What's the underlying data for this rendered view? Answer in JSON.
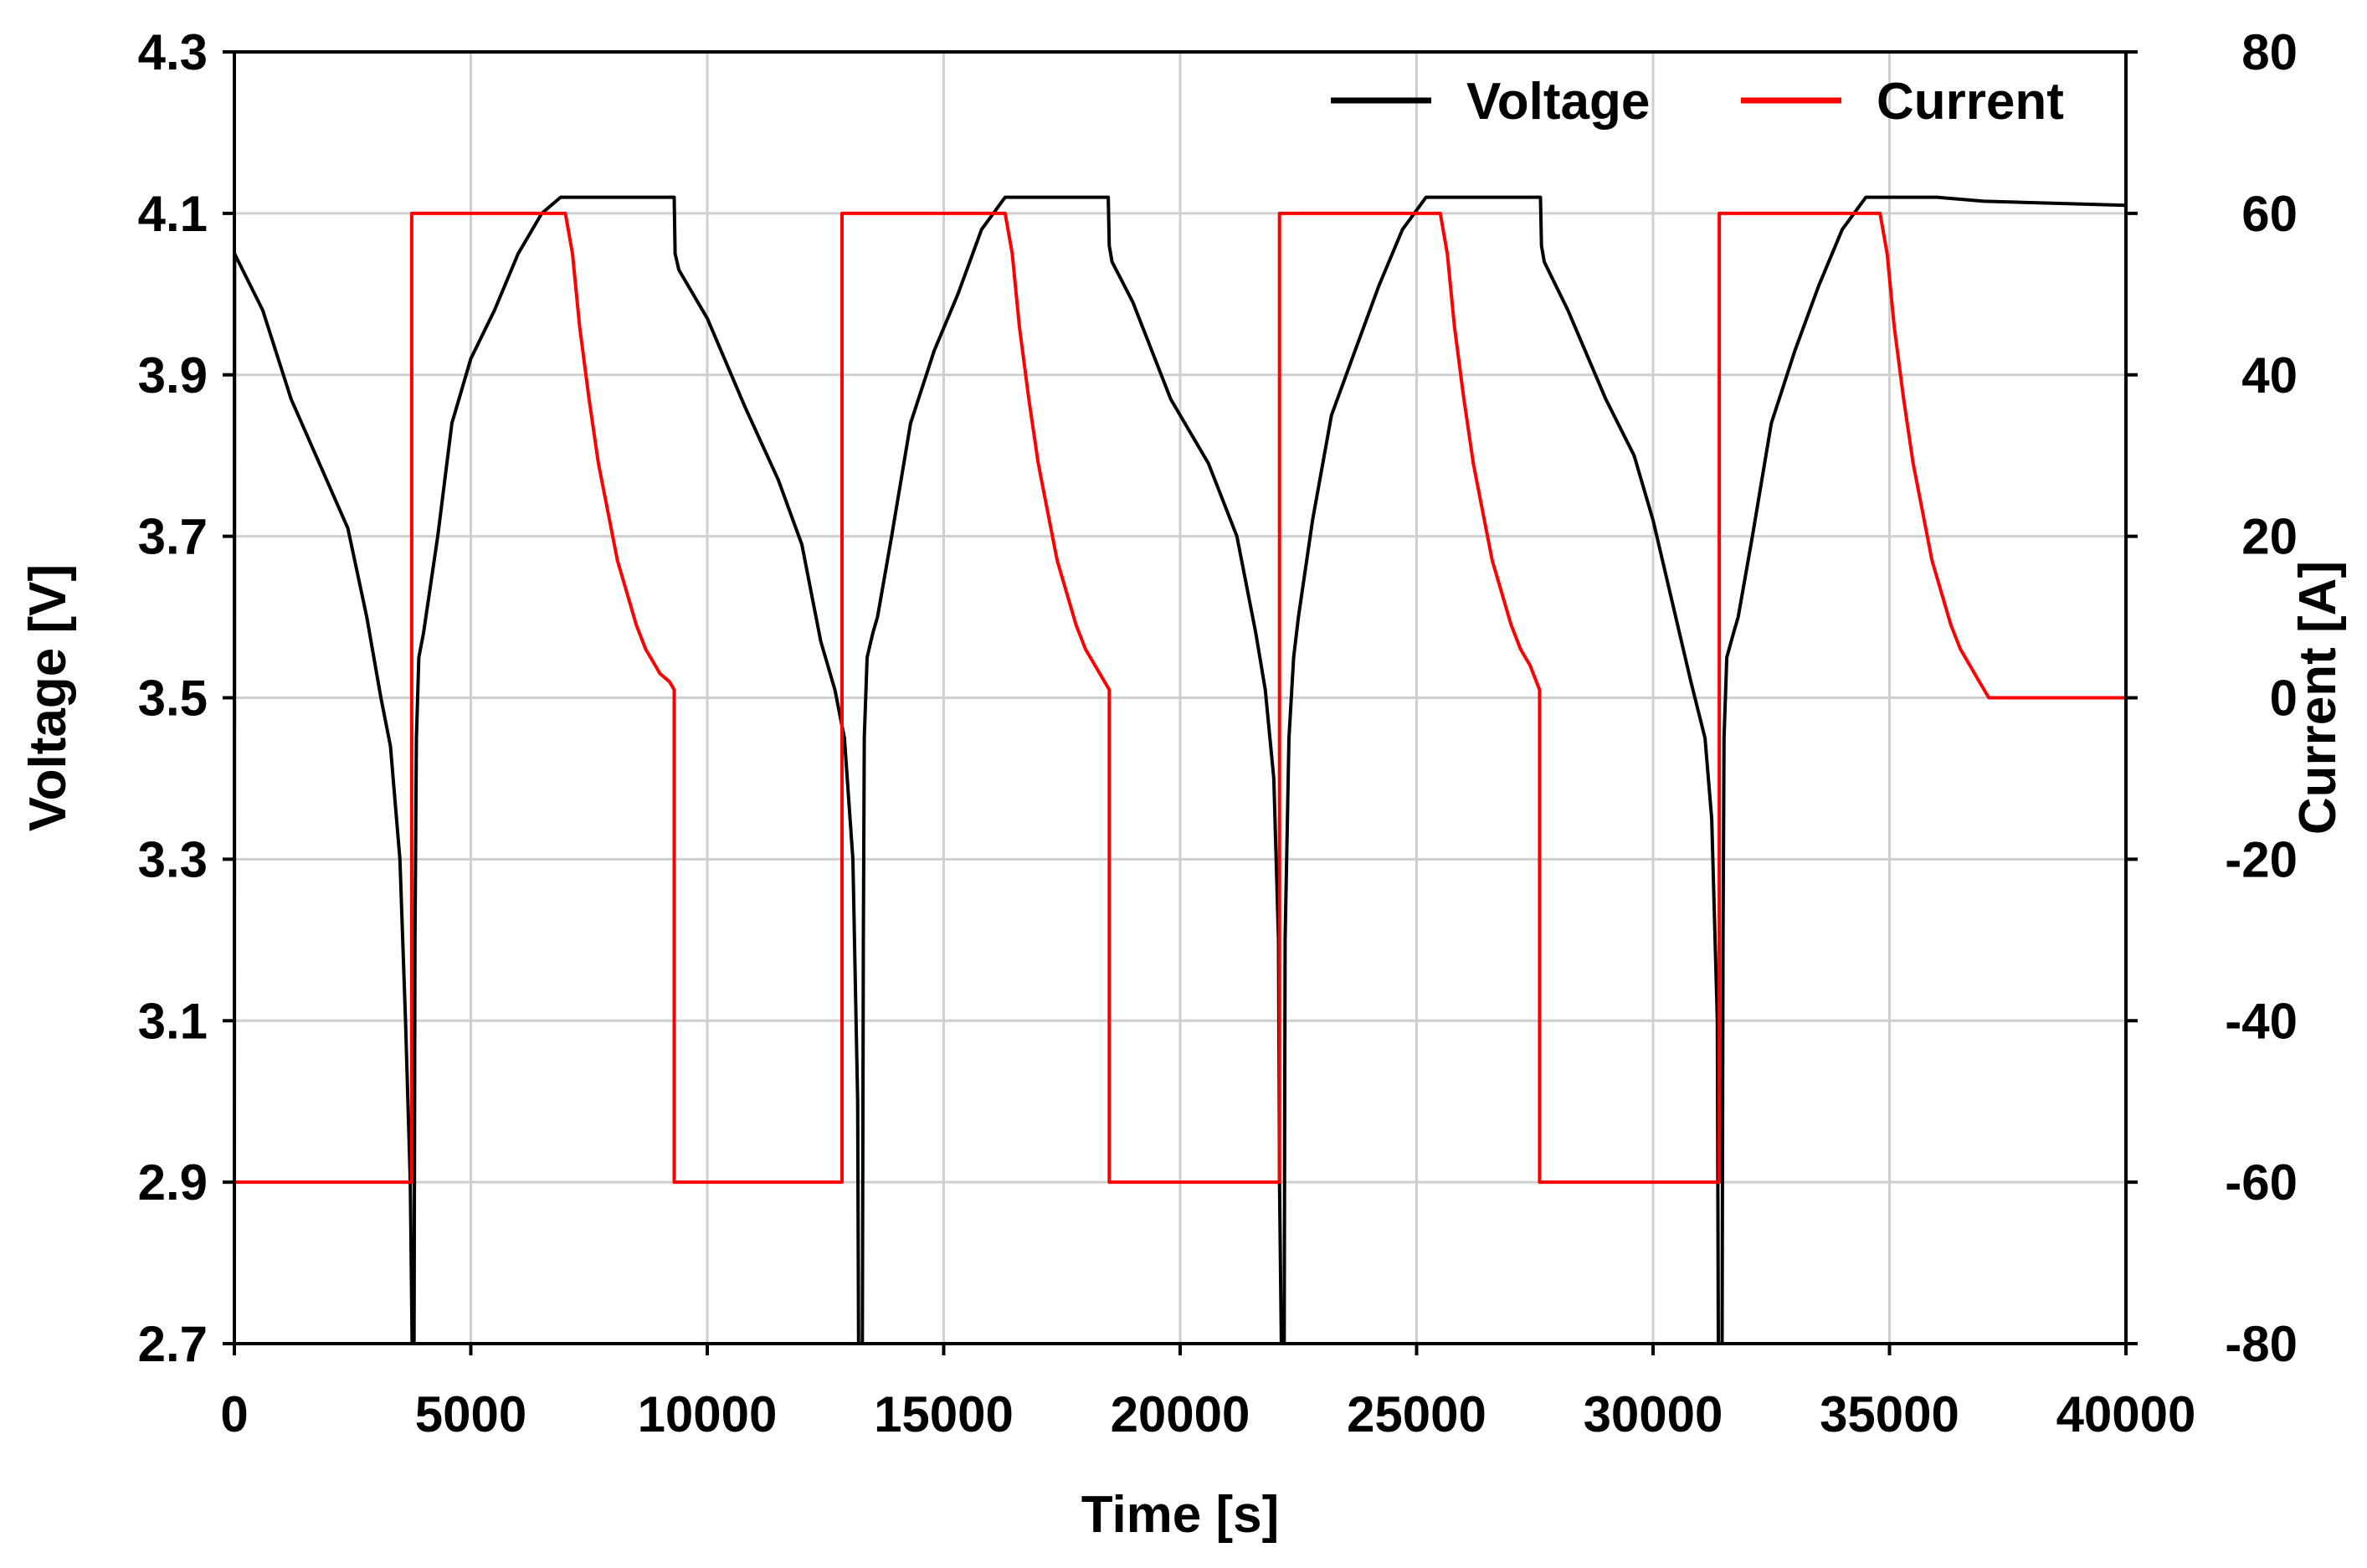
{
  "chart_data": {
    "type": "line",
    "title": "",
    "xlabel": "Time [s]",
    "ylabel": "Voltage [V]",
    "y2label": "Current [A]",
    "xlim": [
      0,
      40000
    ],
    "ylim": [
      2.7,
      4.3
    ],
    "y2lim": [
      -80,
      80
    ],
    "xticks": [
      0,
      5000,
      10000,
      15000,
      20000,
      25000,
      30000,
      35000,
      40000
    ],
    "xtick_labels": [
      "0",
      "5000",
      "10000",
      "15000",
      "20000",
      "25000",
      "30000",
      "35000",
      "40000"
    ],
    "yticks": [
      2.7,
      2.9,
      3.1,
      3.3,
      3.5,
      3.7,
      3.9,
      4.1,
      4.3
    ],
    "ytick_labels": [
      "2.7",
      "2.9",
      "3.1",
      "3.3",
      "3.5",
      "3.7",
      "3.9",
      "4.1",
      "4.3"
    ],
    "y2ticks": [
      -80,
      -60,
      -40,
      -20,
      0,
      20,
      40,
      60,
      80
    ],
    "y2tick_labels": [
      "-80",
      "-60",
      "-40",
      "-20",
      "0",
      "20",
      "40",
      "60",
      "80"
    ],
    "grid": true,
    "legend_position": "top-right",
    "colors": {
      "voltage": "#000000",
      "current": "#ff0000",
      "grid": "#cfcfcf"
    },
    "series": [
      {
        "name": "Voltage",
        "axis": "left",
        "color": "#000000",
        "x": [
          0,
          5,
          600,
          1200,
          1800,
          2400,
          2800,
          3100,
          3300,
          3500,
          3620,
          3720,
          3760,
          3800,
          3820,
          3850,
          3900,
          4000,
          4050,
          4300,
          4600,
          5000,
          5500,
          6000,
          6500,
          6900,
          7000,
          8000,
          9300,
          9320,
          9400,
          10000,
          10800,
          11500,
          12000,
          12400,
          12700,
          12900,
          13080,
          13180,
          13200,
          13240,
          13280,
          13300,
          13320,
          13380,
          13500,
          13600,
          13900,
          14300,
          14800,
          15300,
          15800,
          16300,
          16400,
          17500,
          18480,
          18500,
          18560,
          19000,
          19800,
          20600,
          21200,
          21600,
          21800,
          21980,
          22080,
          22100,
          22140,
          22180,
          22200,
          22220,
          22300,
          22400,
          22500,
          22800,
          23200,
          23700,
          24200,
          24700,
          25200,
          25400,
          26500,
          27620,
          27640,
          27700,
          28200,
          29000,
          29600,
          30000,
          30400,
          30800,
          31100,
          31240,
          31360,
          31380,
          31420,
          31460,
          31480,
          31500,
          31560,
          31700,
          31800,
          32100,
          32500,
          33000,
          33500,
          34000,
          34500,
          34700,
          36000,
          37000,
          40000
        ],
        "y": [
          2.72,
          4.05,
          3.98,
          3.87,
          3.79,
          3.71,
          3.6,
          3.5,
          3.44,
          3.3,
          3.1,
          2.9,
          2.7,
          2.7,
          3.2,
          3.45,
          3.55,
          3.58,
          3.6,
          3.7,
          3.84,
          3.92,
          3.98,
          4.05,
          4.1,
          4.12,
          4.12,
          4.12,
          4.12,
          4.05,
          4.03,
          3.97,
          3.86,
          3.77,
          3.69,
          3.57,
          3.51,
          3.45,
          3.3,
          3.0,
          2.7,
          2.7,
          2.7,
          3.2,
          3.45,
          3.55,
          3.58,
          3.6,
          3.7,
          3.84,
          3.93,
          4.0,
          4.08,
          4.12,
          4.12,
          4.12,
          4.12,
          4.06,
          4.04,
          3.99,
          3.87,
          3.79,
          3.7,
          3.58,
          3.51,
          3.4,
          3.2,
          2.9,
          2.7,
          2.7,
          2.7,
          3.2,
          3.45,
          3.55,
          3.6,
          3.72,
          3.85,
          3.93,
          4.01,
          4.08,
          4.12,
          4.12,
          4.12,
          4.12,
          4.06,
          4.04,
          3.98,
          3.87,
          3.8,
          3.72,
          3.62,
          3.52,
          3.45,
          3.35,
          3.1,
          2.7,
          2.7,
          2.7,
          3.2,
          3.45,
          3.55,
          3.58,
          3.6,
          3.7,
          3.84,
          3.93,
          4.01,
          4.08,
          4.12,
          4.12,
          4.12,
          4.115,
          4.11
        ]
      },
      {
        "name": "Current",
        "axis": "right",
        "color": "#ff0000",
        "x": [
          0,
          3750,
          3750,
          7000,
          7150,
          7300,
          7500,
          7700,
          7900,
          8100,
          8300,
          8500,
          8700,
          8900,
          9000,
          9200,
          9300,
          9300,
          12850,
          12850,
          16300,
          16450,
          16600,
          16800,
          17000,
          17200,
          17400,
          17600,
          17800,
          18000,
          18200,
          18500,
          18500,
          22100,
          22100,
          25500,
          25650,
          25800,
          26000,
          26200,
          26400,
          26600,
          26800,
          27000,
          27200,
          27400,
          27600,
          27600,
          31400,
          31400,
          34800,
          34950,
          35100,
          35300,
          35500,
          35700,
          35900,
          36100,
          36300,
          36500,
          36700,
          36900,
          37000,
          37100,
          40000
        ],
        "y": [
          -60,
          -60,
          60,
          60,
          55,
          46,
          37,
          29,
          23,
          17,
          13,
          9,
          6,
          4,
          3,
          2,
          1,
          -60,
          -60,
          60,
          60,
          55,
          46,
          37,
          29,
          23,
          17,
          13,
          9,
          6,
          4,
          1,
          -60,
          -60,
          60,
          60,
          55,
          46,
          37,
          29,
          23,
          17,
          13,
          9,
          6,
          4,
          1,
          -60,
          -60,
          60,
          60,
          55,
          46,
          37,
          29,
          23,
          17,
          13,
          9,
          6,
          4,
          2,
          1,
          0,
          0
        ]
      }
    ]
  }
}
